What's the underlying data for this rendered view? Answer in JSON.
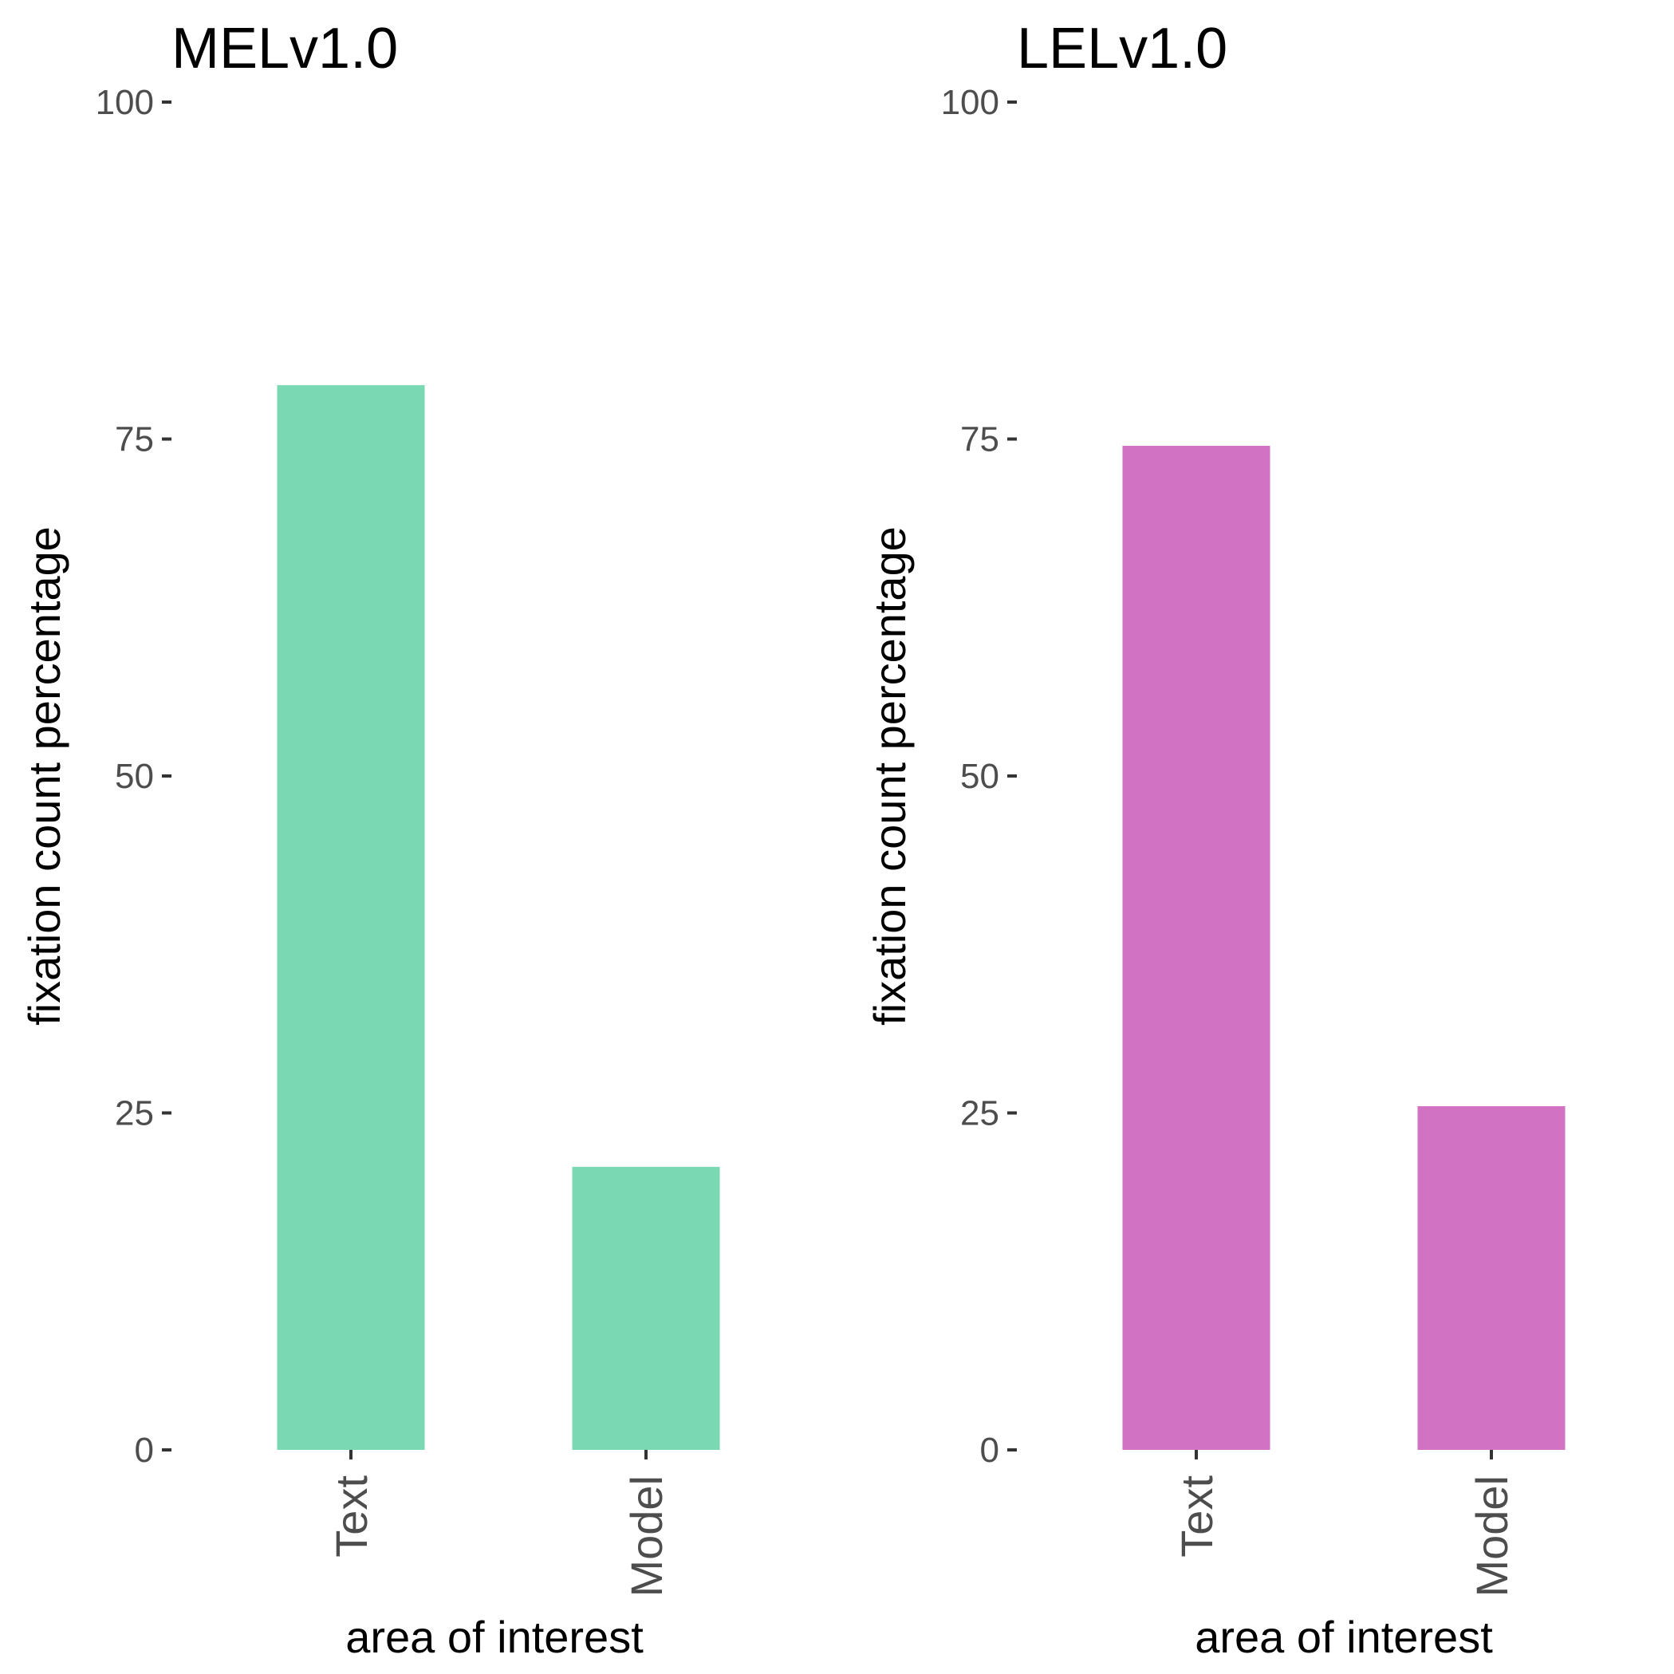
{
  "chart_data": [
    {
      "type": "bar",
      "title": "MELv1.0",
      "xlabel": "area of interest",
      "ylabel": "fixation count percentage",
      "categories": [
        "Text",
        "Model"
      ],
      "values": [
        79,
        21
      ],
      "ylim": [
        0,
        100
      ],
      "yticks": [
        0,
        25,
        50,
        75,
        100
      ],
      "color": "#7AD9B2",
      "grid": false
    },
    {
      "type": "bar",
      "title": "LELv1.0",
      "xlabel": "area of interest",
      "ylabel": "fixation count percentage",
      "categories": [
        "Text",
        "Model"
      ],
      "values": [
        74.5,
        25.5
      ],
      "ylim": [
        0,
        100
      ],
      "yticks": [
        0,
        25,
        50,
        75,
        100
      ],
      "color": "#D272C2",
      "grid": false
    }
  ]
}
